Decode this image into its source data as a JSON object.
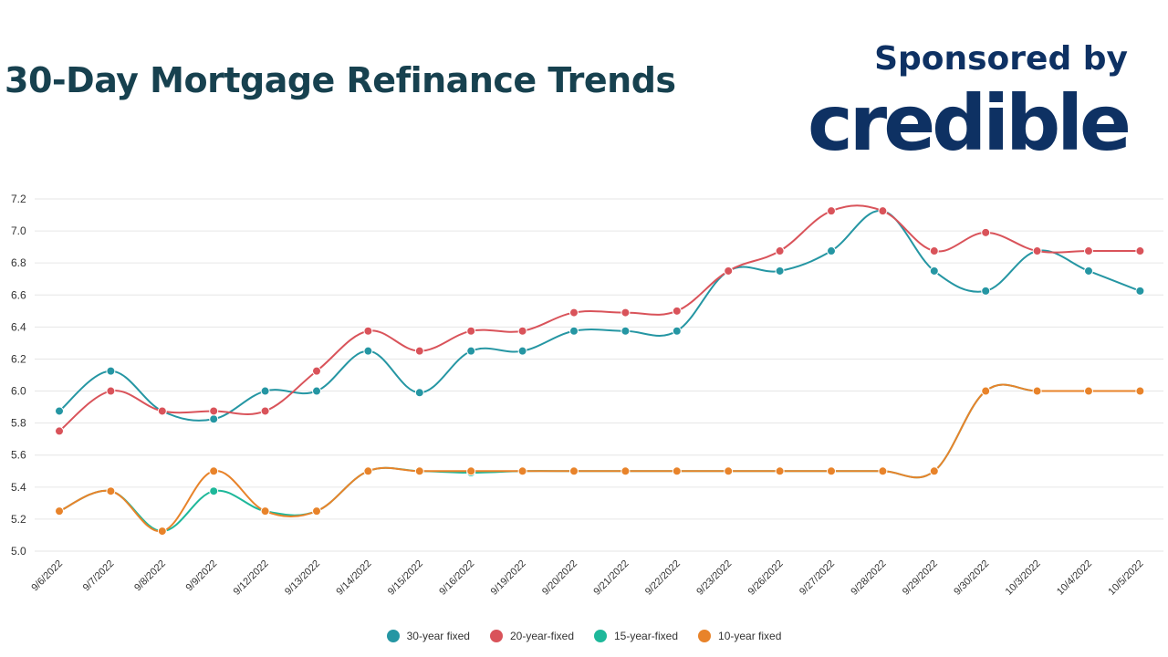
{
  "header": {
    "title": "30-Day Mortgage Refinance Trends",
    "sponsor_label": "Sponsored by",
    "sponsor_logo": "credible"
  },
  "colors": {
    "title": "#17414f",
    "brand": "#0e3163",
    "grid": "#e6e6e6"
  },
  "chart_data": {
    "type": "line",
    "title": "30-Day Mortgage Refinance Trends",
    "xlabel": "",
    "ylabel": "",
    "ylim": [
      5.0,
      7.2
    ],
    "yticks": [
      "5.0",
      "5.2",
      "5.4",
      "5.6",
      "5.8",
      "6.0",
      "6.2",
      "6.4",
      "6.6",
      "6.8",
      "7.0",
      "7.2"
    ],
    "grid": true,
    "legend_position": "bottom",
    "categories": [
      "9/6/2022",
      "9/7/2022",
      "9/8/2022",
      "9/9/2022",
      "9/12/2022",
      "9/13/2022",
      "9/14/2022",
      "9/15/2022",
      "9/16/2022",
      "9/19/2022",
      "9/20/2022",
      "9/21/2022",
      "9/22/2022",
      "9/23/2022",
      "9/26/2022",
      "9/27/2022",
      "9/28/2022",
      "9/29/2022",
      "9/30/2022",
      "10/3/2022",
      "10/4/2022",
      "10/5/2022"
    ],
    "series": [
      {
        "name": "30-year fixed",
        "color": "#2596a3",
        "values": [
          5.875,
          6.125,
          5.875,
          5.825,
          6.0,
          6.0,
          6.25,
          5.99,
          6.25,
          6.25,
          6.375,
          6.375,
          6.375,
          6.75,
          6.75,
          6.875,
          7.125,
          6.75,
          6.625,
          6.875,
          6.75,
          6.625
        ]
      },
      {
        "name": "20-year-fixed",
        "color": "#d9535a",
        "values": [
          5.75,
          6.0,
          5.875,
          5.875,
          5.875,
          6.125,
          6.375,
          6.25,
          6.375,
          6.375,
          6.49,
          6.49,
          6.5,
          6.75,
          6.875,
          7.125,
          7.125,
          6.875,
          6.99,
          6.875,
          6.875,
          6.875
        ]
      },
      {
        "name": "15-year-fixed",
        "color": "#1eb89a",
        "values": [
          5.25,
          5.375,
          5.125,
          5.375,
          5.25,
          5.25,
          5.5,
          5.5,
          5.49,
          5.5,
          5.5,
          5.5,
          5.5,
          5.5,
          5.5,
          5.5,
          5.5,
          5.5,
          6.0,
          6.0,
          6.0,
          6.0
        ]
      },
      {
        "name": "10-year fixed",
        "color": "#e8832a",
        "values": [
          5.25,
          5.375,
          5.125,
          5.5,
          5.25,
          5.25,
          5.5,
          5.5,
          5.5,
          5.5,
          5.5,
          5.5,
          5.5,
          5.5,
          5.5,
          5.5,
          5.5,
          5.5,
          6.0,
          6.0,
          6.0,
          6.0
        ]
      }
    ]
  }
}
